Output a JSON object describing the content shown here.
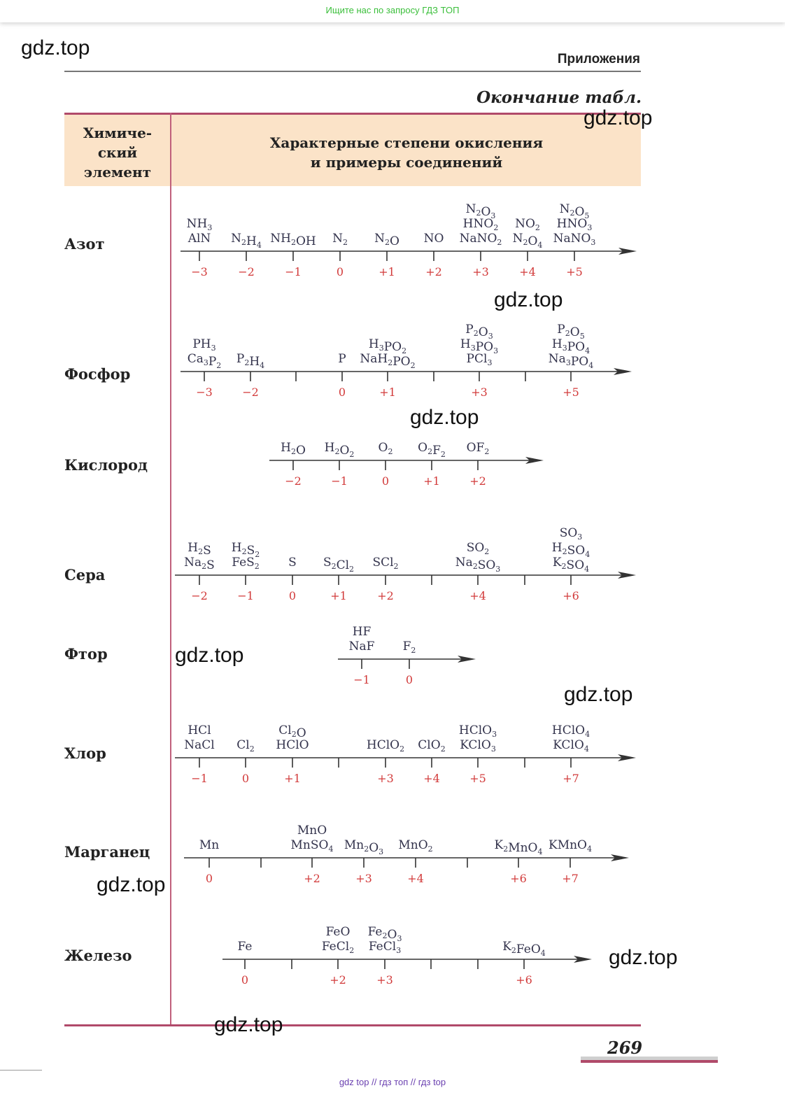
{
  "top_banner": "Ищите нас по запросу ГДЗ ТОП",
  "section_title": "Приложения",
  "continuation": "Окончание табл.",
  "header": {
    "element_col": [
      "Химиче-",
      "ский",
      "элемент"
    ],
    "desc_col": [
      "Характерные степени окисления",
      "и примеры соединений"
    ]
  },
  "watermark": "gdz.top",
  "page_number": "269",
  "footer": "gdz top  //  гдз топ  //  гдз top",
  "colors": {
    "header_bg": "#fbe3c8",
    "rule": "#b04a6a",
    "number": "#d23b3b",
    "formula": "#33334c"
  },
  "elements": [
    {
      "name": "Азот",
      "points": [
        {
          "num": "−3",
          "formulas": [
            "NH_3",
            "AlN"
          ]
        },
        {
          "num": "−2",
          "formulas": [
            "N_2H_4"
          ]
        },
        {
          "num": "−1",
          "formulas": [
            "NH_2OH"
          ]
        },
        {
          "num": "0",
          "formulas": [
            "N_2"
          ]
        },
        {
          "num": "+1",
          "formulas": [
            "N_2O"
          ]
        },
        {
          "num": "+2",
          "formulas": [
            "NO"
          ]
        },
        {
          "num": "+3",
          "formulas": [
            "N_2O_3",
            "HNO_2",
            "NaNO_2"
          ]
        },
        {
          "num": "+4",
          "formulas": [
            "NO_2",
            "N_2O_4"
          ]
        },
        {
          "num": "+5",
          "formulas": [
            "N_2O_5",
            "HNO_3",
            "NaNO_3"
          ]
        }
      ]
    },
    {
      "name": "Фосфор",
      "points": [
        {
          "num": "−3",
          "formulas": [
            "PH_3",
            "Ca_3P_2"
          ]
        },
        {
          "num": "−2",
          "formulas": [
            "P_2H_4"
          ]
        },
        {
          "num": "",
          "formulas": []
        },
        {
          "num": "0",
          "formulas": [
            "P"
          ]
        },
        {
          "num": "+1",
          "formulas": [
            "H_3PO_2",
            "NaH_2PO_2"
          ]
        },
        {
          "num": "",
          "formulas": []
        },
        {
          "num": "+3",
          "formulas": [
            "P_2O_3",
            "H_3PO_3",
            "PCl_3"
          ]
        },
        {
          "num": "",
          "formulas": []
        },
        {
          "num": "+5",
          "formulas": [
            "P_2O_5",
            "H_3PO_4",
            "Na_3PO_4"
          ]
        }
      ]
    },
    {
      "name": "Кислород",
      "points": [
        {
          "num": "−2",
          "formulas": [
            "H_2O"
          ]
        },
        {
          "num": "−1",
          "formulas": [
            "H_2O_2"
          ]
        },
        {
          "num": "0",
          "formulas": [
            "O_2"
          ]
        },
        {
          "num": "+1",
          "formulas": [
            "O_2F_2"
          ]
        },
        {
          "num": "+2",
          "formulas": [
            "OF_2"
          ]
        }
      ]
    },
    {
      "name": "Сера",
      "points": [
        {
          "num": "−2",
          "formulas": [
            "H_2S",
            "Na_2S"
          ]
        },
        {
          "num": "−1",
          "formulas": [
            "H_2S_2",
            "FeS_2"
          ]
        },
        {
          "num": "0",
          "formulas": [
            "S"
          ]
        },
        {
          "num": "+1",
          "formulas": [
            "S_2Cl_2"
          ]
        },
        {
          "num": "+2",
          "formulas": [
            "SCl_2"
          ]
        },
        {
          "num": "",
          "formulas": []
        },
        {
          "num": "+4",
          "formulas": [
            "SO_2",
            "Na_2SO_3"
          ]
        },
        {
          "num": "",
          "formulas": []
        },
        {
          "num": "+6",
          "formulas": [
            "SO_3",
            "H_2SO_4",
            "K_2SO_4"
          ]
        }
      ]
    },
    {
      "name": "Фтор",
      "points": [
        {
          "num": "−1",
          "formulas": [
            "HF",
            "NaF"
          ]
        },
        {
          "num": "0",
          "formulas": [
            "F_2"
          ]
        }
      ]
    },
    {
      "name": "Хлор",
      "points": [
        {
          "num": "−1",
          "formulas": [
            "HCl",
            "NaCl"
          ]
        },
        {
          "num": "0",
          "formulas": [
            "Cl_2"
          ]
        },
        {
          "num": "+1",
          "formulas": [
            "Cl_2O",
            "HClO"
          ]
        },
        {
          "num": "",
          "formulas": []
        },
        {
          "num": "+3",
          "formulas": [
            "HClO_2"
          ]
        },
        {
          "num": "+4",
          "formulas": [
            "ClO_2"
          ]
        },
        {
          "num": "+5",
          "formulas": [
            "HClO_3",
            "KClO_3"
          ]
        },
        {
          "num": "",
          "formulas": []
        },
        {
          "num": "+7",
          "formulas": [
            "HClO_4",
            "KClO_4"
          ]
        }
      ]
    },
    {
      "name": "Марганец",
      "points": [
        {
          "num": "0",
          "formulas": [
            "Mn"
          ]
        },
        {
          "num": "",
          "formulas": []
        },
        {
          "num": "+2",
          "formulas": [
            "MnO",
            "MnSO_4"
          ]
        },
        {
          "num": "+3",
          "formulas": [
            "Mn_2O_3"
          ]
        },
        {
          "num": "+4",
          "formulas": [
            "MnO_2"
          ]
        },
        {
          "num": "",
          "formulas": []
        },
        {
          "num": "+6",
          "formulas": [
            "K_2MnO_4"
          ]
        },
        {
          "num": "+7",
          "formulas": [
            "KMnO_4"
          ]
        }
      ]
    },
    {
      "name": "Железо",
      "points": [
        {
          "num": "0",
          "formulas": [
            "Fe"
          ]
        },
        {
          "num": "",
          "formulas": []
        },
        {
          "num": "+2",
          "formulas": [
            "FeO",
            "FeCl_2"
          ]
        },
        {
          "num": "+3",
          "formulas": [
            "Fe_2O_3",
            "FeCl_3"
          ]
        },
        {
          "num": "",
          "formulas": []
        },
        {
          "num": "",
          "formulas": []
        },
        {
          "num": "+6",
          "formulas": [
            "K_2FeO_4"
          ]
        }
      ]
    }
  ]
}
